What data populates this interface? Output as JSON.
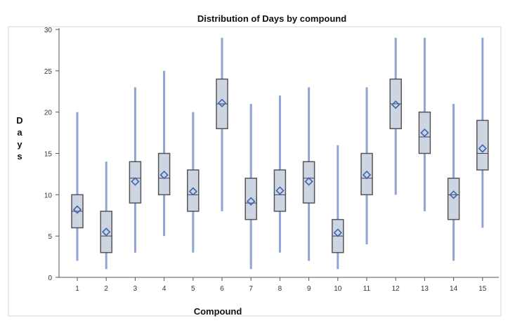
{
  "chart_data": {
    "type": "boxplot",
    "title": "Distribution of Days by compound",
    "xlabel": "Compound",
    "ylabel": "Days",
    "ylim": [
      0,
      30
    ],
    "yticks": [
      "0",
      "5",
      "10",
      "15",
      "20",
      "25",
      "30"
    ],
    "categories": [
      "1",
      "2",
      "3",
      "4",
      "5",
      "6",
      "7",
      "8",
      "9",
      "10",
      "11",
      "12",
      "13",
      "14",
      "15"
    ],
    "series": [
      {
        "min": 2,
        "q1": 6,
        "median": 8,
        "q3": 10,
        "max": 20,
        "mean": 8.2
      },
      {
        "min": 1,
        "q1": 3,
        "median": 5,
        "q3": 8,
        "max": 14,
        "mean": 5.5
      },
      {
        "min": 3,
        "q1": 9,
        "median": 12,
        "q3": 14,
        "max": 23,
        "mean": 11.6
      },
      {
        "min": 5,
        "q1": 10,
        "median": 12,
        "q3": 15,
        "max": 25,
        "mean": 12.4
      },
      {
        "min": 3,
        "q1": 8,
        "median": 10,
        "q3": 13,
        "max": 20,
        "mean": 10.4
      },
      {
        "min": 8,
        "q1": 18,
        "median": 21,
        "q3": 24,
        "max": 29,
        "mean": 21.1
      },
      {
        "min": 1,
        "q1": 7,
        "median": 9,
        "q3": 12,
        "max": 21,
        "mean": 9.2
      },
      {
        "min": 3,
        "q1": 8,
        "median": 10,
        "q3": 13,
        "max": 22,
        "mean": 10.5
      },
      {
        "min": 2,
        "q1": 9,
        "median": 12,
        "q3": 14,
        "max": 23,
        "mean": 11.6
      },
      {
        "min": 1,
        "q1": 3,
        "median": 5,
        "q3": 7,
        "max": 16,
        "mean": 5.4
      },
      {
        "min": 4,
        "q1": 10,
        "median": 12,
        "q3": 15,
        "max": 23,
        "mean": 12.4
      },
      {
        "min": 10,
        "q1": 18,
        "median": 21,
        "q3": 24,
        "max": 29,
        "mean": 20.9
      },
      {
        "min": 8,
        "q1": 15,
        "median": 17,
        "q3": 20,
        "max": 29,
        "mean": 17.5
      },
      {
        "min": 2,
        "q1": 7,
        "median": 10,
        "q3": 12,
        "max": 21,
        "mean": 10.0
      },
      {
        "min": 6,
        "q1": 13,
        "median": 15,
        "q3": 19,
        "max": 29,
        "mean": 15.6
      }
    ],
    "grid": false,
    "legend": "none",
    "colors": {
      "box_fill": "#cdd5e2",
      "box_edge": "#555555",
      "whisker": "#8ea4d2",
      "median": "#444444",
      "mean_marker": "#3c64b4",
      "axis": "#555555"
    }
  }
}
